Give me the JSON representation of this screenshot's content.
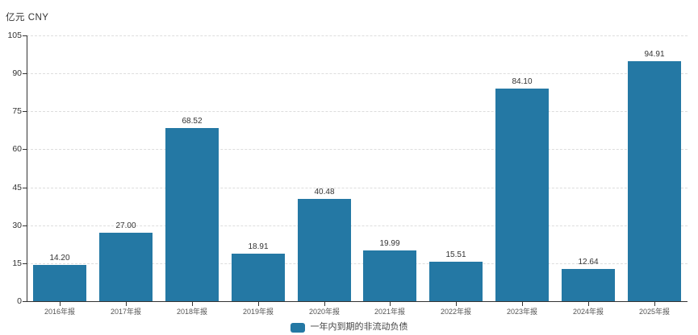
{
  "chart": {
    "unit_label": "亿元 CNY",
    "legend": {
      "label": "一年内到期的非流动负债"
    },
    "colors": {
      "bar": "#2478a4",
      "axis": "#333333",
      "grid": "#dddddd",
      "y_tick_label": "#333333",
      "x_tick_label": "#555555",
      "value_label": "#333333",
      "background": "#ffffff"
    }
  },
  "chart_data": {
    "type": "bar",
    "title": "一年内到期的非流动负债",
    "unit": "亿元 CNY",
    "categories": [
      "2016年报",
      "2017年报",
      "2018年报",
      "2019年报",
      "2020年报",
      "2021年报",
      "2022年报",
      "2023年报",
      "2024年报",
      "2025年报"
    ],
    "values": [
      14.2,
      27.0,
      68.52,
      18.91,
      40.48,
      19.99,
      15.51,
      84.1,
      12.64,
      94.91
    ],
    "value_labels": [
      "14.20",
      "27.00",
      "68.52",
      "18.91",
      "40.48",
      "19.99",
      "15.51",
      "84.10",
      "12.64",
      "94.91"
    ],
    "xlabel": "",
    "ylabel": "亿元 CNY",
    "ylim": [
      0,
      105
    ],
    "yticks": [
      0,
      15,
      30,
      45,
      60,
      75,
      90,
      105
    ],
    "grid": true,
    "grid_style": "dashed",
    "legend": [
      "一年内到期的非流动负债"
    ],
    "legend_position": "bottom"
  }
}
